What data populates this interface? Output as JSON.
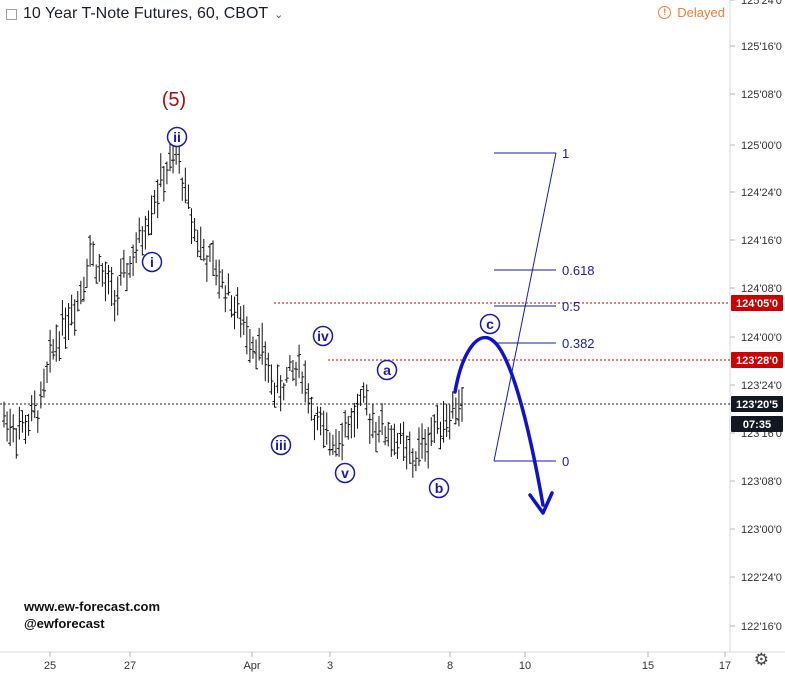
{
  "header": {
    "title": "10 Year T-Note Futures, 60, CBOT",
    "delayed_label": "Delayed"
  },
  "footer": {
    "website": "www.ew-forecast.com",
    "handle": "@ewforecast"
  },
  "colors": {
    "bars": "#111111",
    "wave": "#1a1aa8",
    "level_red": "#cc0000",
    "tag_dark": "#131722",
    "delayed": "#f57c32"
  },
  "chart_data": {
    "type": "bar",
    "title": "10 Year T-Note Futures, 60, CBOT",
    "x_ticks": [
      "25",
      "27",
      "Apr",
      "3",
      "8",
      "10",
      "15",
      "17"
    ],
    "y_ticks": [
      "125'24'0",
      "125'16'0",
      "125'08'0",
      "125'00'0",
      "124'24'0",
      "124'16'0",
      "124'08'0",
      "124'00'0",
      "123'24'0",
      "123'16'0",
      "123'08'0",
      "123'00'0",
      "122'24'0",
      "122'16'0"
    ],
    "price_tags": [
      {
        "label": "124'05'0",
        "value": 124.156,
        "color": "red"
      },
      {
        "label": "123'28'0",
        "value": 123.875,
        "color": "red"
      },
      {
        "label": "123'20'5",
        "value": 123.64,
        "color": "dark"
      },
      {
        "label": "07:35",
        "color": "dark"
      }
    ],
    "major_wave": "(5)",
    "wave_labels": [
      "i",
      "ii",
      "iii",
      "iv",
      "v",
      "a",
      "b",
      "c"
    ],
    "fibonacci": [
      {
        "ratio": "1",
        "price": 124.97
      },
      {
        "ratio": "0.618",
        "price": 124.3
      },
      {
        "ratio": "0.5",
        "price": 124.15
      },
      {
        "ratio": "0.382",
        "price": 123.92
      },
      {
        "ratio": "0",
        "price": 123.52
      }
    ],
    "price_path": [
      {
        "x": 0,
        "y": 123.58
      },
      {
        "x": 1,
        "y": 123.52
      },
      {
        "x": 2,
        "y": 123.55
      },
      {
        "x": 3,
        "y": 123.65
      },
      {
        "x": 4,
        "y": 123.95
      },
      {
        "x": 5,
        "y": 124.1
      },
      {
        "x": 6,
        "y": 124.2
      },
      {
        "x": 7,
        "y": 124.45
      },
      {
        "x": 8,
        "y": 124.3
      },
      {
        "x": 9,
        "y": 124.2
      },
      {
        "x": 10,
        "y": 124.35
      },
      {
        "x": 11,
        "y": 124.5
      },
      {
        "x": 12,
        "y": 124.7
      },
      {
        "x": 13,
        "y": 124.85
      },
      {
        "x": 14,
        "y": 124.95
      },
      {
        "x": 15,
        "y": 124.65
      },
      {
        "x": 16,
        "y": 124.45
      },
      {
        "x": 17,
        "y": 124.35
      },
      {
        "x": 18,
        "y": 124.25
      },
      {
        "x": 19,
        "y": 124.1
      },
      {
        "x": 20,
        "y": 124.0
      },
      {
        "x": 21,
        "y": 123.9
      },
      {
        "x": 22,
        "y": 123.7
      },
      {
        "x": 23,
        "y": 123.8
      },
      {
        "x": 24,
        "y": 123.85
      },
      {
        "x": 25,
        "y": 123.6
      },
      {
        "x": 26,
        "y": 123.45
      },
      {
        "x": 27,
        "y": 123.5
      },
      {
        "x": 28,
        "y": 123.55
      },
      {
        "x": 29,
        "y": 123.65
      },
      {
        "x": 30,
        "y": 123.55
      },
      {
        "x": 31,
        "y": 123.5
      },
      {
        "x": 32,
        "y": 123.45
      },
      {
        "x": 33,
        "y": 123.35
      },
      {
        "x": 34,
        "y": 123.45
      },
      {
        "x": 35,
        "y": 123.55
      },
      {
        "x": 36,
        "y": 123.6
      },
      {
        "x": 37,
        "y": 123.65
      }
    ],
    "projection": "wave c up to about 123.98 then decline below 123.0"
  }
}
